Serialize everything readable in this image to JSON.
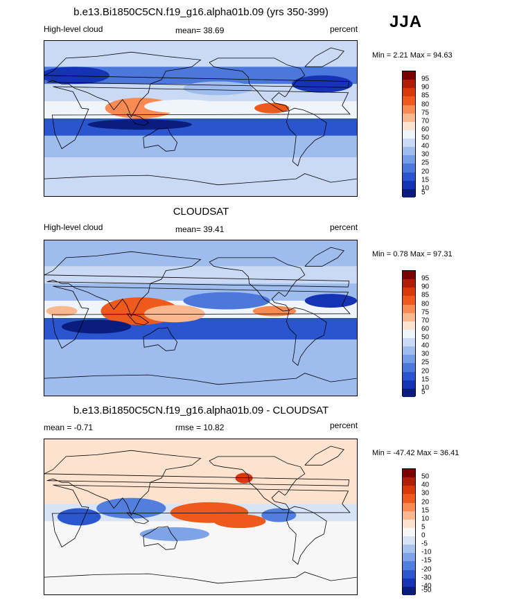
{
  "page": {
    "season": "JJA"
  },
  "chart_data": [
    {
      "type": "heatmap",
      "title": "b.e13.Bi1850C5CN.f19_g16.alpha01b.09 (yrs 350-399)",
      "left_label": "High-level cloud",
      "mean_text": "mean=  38.69",
      "units": "percent",
      "minmax_text": "Min =  2.21 Max =  94.63",
      "min": 2.21,
      "max": 94.63,
      "colorbar": {
        "levels": [
          "95",
          "90",
          "85",
          "80",
          "75",
          "70",
          "60",
          "50",
          "40",
          "30",
          "25",
          "20",
          "15",
          "10",
          "5"
        ],
        "colors": [
          "#7a0000",
          "#b01e04",
          "#d8380a",
          "#ee5a1c",
          "#f88a52",
          "#fbb88e",
          "#fde2d0",
          "#f0f4fb",
          "#cad9f4",
          "#9fbcee",
          "#759ce6",
          "#4c78dc",
          "#2a55cf",
          "#1433b5",
          "#0a1c7e"
        ]
      },
      "bands": [
        {
          "lat_from": 90,
          "lat_to": 60,
          "value": 45
        },
        {
          "lat_from": 60,
          "lat_to": 40,
          "value": 20
        },
        {
          "lat_from": 40,
          "lat_to": 20,
          "value": 45
        },
        {
          "lat_from": 20,
          "lat_to": 0,
          "value": 58
        },
        {
          "lat_from": 0,
          "lat_to": -20,
          "value": 15
        },
        {
          "lat_from": -20,
          "lat_to": -45,
          "value": 32
        },
        {
          "lat_from": -45,
          "lat_to": -90,
          "value": 40
        }
      ],
      "features": [
        {
          "lon": 110,
          "lat": 12,
          "lon_w": 40,
          "lat_h": 12,
          "value": 75
        },
        {
          "lon": 160,
          "lat": 14,
          "lon_w": 45,
          "lat_h": 8,
          "value": 58
        },
        {
          "lon": 262,
          "lat": 12,
          "lon_w": 20,
          "lat_h": 6,
          "value": 80
        },
        {
          "lon": 35,
          "lat": 50,
          "lon_w": 40,
          "lat_h": 10,
          "value": 12
        },
        {
          "lon": 320,
          "lat": 40,
          "lon_w": 35,
          "lat_h": 10,
          "value": 10
        },
        {
          "lon": 200,
          "lat": 35,
          "lon_w": 40,
          "lat_h": 8,
          "value": 30
        },
        {
          "lon": 110,
          "lat": -7,
          "lon_w": 60,
          "lat_h": 6,
          "value": 8
        }
      ]
    },
    {
      "type": "heatmap",
      "title": "CLOUDSAT",
      "left_label": "High-level cloud",
      "mean_text": "mean=  39.41",
      "units": "percent",
      "minmax_text": "Min =  0.78 Max =  97.31",
      "min": 0.78,
      "max": 97.31,
      "colorbar": {
        "levels": [
          "95",
          "90",
          "85",
          "80",
          "75",
          "70",
          "60",
          "50",
          "40",
          "30",
          "25",
          "20",
          "15",
          "10",
          "5"
        ],
        "colors": [
          "#7a0000",
          "#b01e04",
          "#d8380a",
          "#ee5a1c",
          "#f88a52",
          "#fbb88e",
          "#fde2d0",
          "#f0f4fb",
          "#cad9f4",
          "#9fbcee",
          "#759ce6",
          "#4c78dc",
          "#2a55cf",
          "#1433b5",
          "#0a1c7e"
        ]
      },
      "bands": [
        {
          "lat_from": 90,
          "lat_to": 60,
          "value": 35
        },
        {
          "lat_from": 60,
          "lat_to": 40,
          "value": 40
        },
        {
          "lat_from": 40,
          "lat_to": 20,
          "value": 30
        },
        {
          "lat_from": 20,
          "lat_to": 0,
          "value": 55
        },
        {
          "lat_from": 0,
          "lat_to": -25,
          "value": 15
        },
        {
          "lat_from": -25,
          "lat_to": -45,
          "value": 32
        },
        {
          "lat_from": -45,
          "lat_to": -90,
          "value": 38
        }
      ],
      "features": [
        {
          "lon": 110,
          "lat": 8,
          "lon_w": 45,
          "lat_h": 16,
          "value": 80
        },
        {
          "lon": 150,
          "lat": 5,
          "lon_w": 35,
          "lat_h": 10,
          "value": 70
        },
        {
          "lon": 265,
          "lat": 8,
          "lon_w": 25,
          "lat_h": 6,
          "value": 75
        },
        {
          "lon": 20,
          "lat": 8,
          "lon_w": 18,
          "lat_h": 6,
          "value": 70
        },
        {
          "lon": 60,
          "lat": -10,
          "lon_w": 40,
          "lat_h": 8,
          "value": 8
        },
        {
          "lon": 210,
          "lat": 20,
          "lon_w": 50,
          "lat_h": 10,
          "value": 20
        },
        {
          "lon": 330,
          "lat": 20,
          "lon_w": 30,
          "lat_h": 8,
          "value": 10
        }
      ]
    },
    {
      "type": "heatmap",
      "title": "b.e13.Bi1850C5CN.f19_g16.alpha01b.09 - CLOUDSAT",
      "left_label": "mean =  -0.71",
      "mean_text": "rmse =  10.82",
      "units": "percent",
      "minmax_text": "Min = -47.42 Max =  36.41",
      "min": -47.42,
      "max": 36.41,
      "colorbar": {
        "levels": [
          "50",
          "40",
          "30",
          "20",
          "15",
          "10",
          "5",
          "0",
          "-5",
          "-10",
          "-15",
          "-20",
          "-30",
          "-40",
          "-50"
        ],
        "colors": [
          "#7a0000",
          "#b01e04",
          "#d8380a",
          "#ee5a1c",
          "#f88a52",
          "#fbb88e",
          "#fde2d0",
          "#f7f7f7",
          "#d7e3f6",
          "#a9c3ef",
          "#7fa3e7",
          "#527fdd",
          "#2c58cf",
          "#1636b6",
          "#0a1c7e"
        ]
      },
      "bands": [
        {
          "lat_from": 90,
          "lat_to": 60,
          "value": 5
        },
        {
          "lat_from": 60,
          "lat_to": 35,
          "value": 5
        },
        {
          "lat_from": 35,
          "lat_to": 15,
          "value": 8
        },
        {
          "lat_from": 15,
          "lat_to": -5,
          "value": -5
        },
        {
          "lat_from": -5,
          "lat_to": -25,
          "value": 2
        },
        {
          "lat_from": -25,
          "lat_to": -90,
          "value": 3
        }
      ],
      "features": [
        {
          "lon": 190,
          "lat": 5,
          "lon_w": 45,
          "lat_h": 12,
          "value": 25
        },
        {
          "lon": 225,
          "lat": -5,
          "lon_w": 30,
          "lat_h": 8,
          "value": 20
        },
        {
          "lon": 100,
          "lat": 10,
          "lon_w": 40,
          "lat_h": 12,
          "value": -20
        },
        {
          "lon": 40,
          "lat": 0,
          "lon_w": 25,
          "lat_h": 10,
          "value": -30
        },
        {
          "lon": 150,
          "lat": -20,
          "lon_w": 40,
          "lat_h": 8,
          "value": -15
        },
        {
          "lon": 270,
          "lat": 2,
          "lon_w": 20,
          "lat_h": 8,
          "value": -20
        },
        {
          "lon": 230,
          "lat": 45,
          "lon_w": 10,
          "lat_h": 6,
          "value": 35
        }
      ]
    }
  ]
}
